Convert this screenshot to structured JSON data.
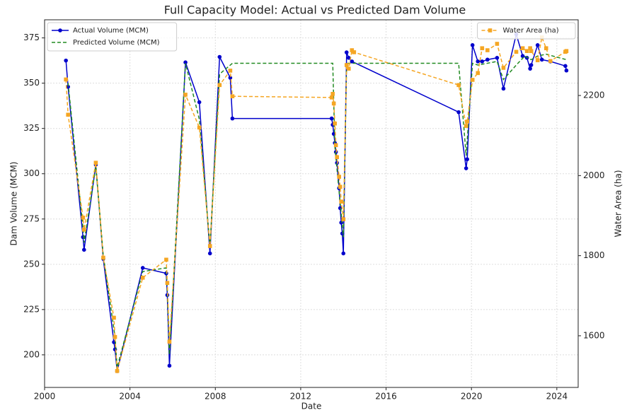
{
  "chart_data": {
    "type": "line",
    "title": "Full Capacity Model: Actual vs Predicted Dam Volume",
    "x_label": "Date",
    "y_label": "Dam Volume (MCM)",
    "y2_label": "Water Area (ha)",
    "xlim": [
      2000,
      2025
    ],
    "xticks": [
      2000,
      2004,
      2008,
      2012,
      2016,
      2020,
      2024
    ],
    "ylim": [
      182,
      385
    ],
    "yticks": [
      200,
      225,
      250,
      275,
      300,
      325,
      350,
      375
    ],
    "y2lim": [
      1471,
      2389
    ],
    "y2ticks": [
      1600,
      1800,
      2000,
      2200
    ],
    "grid": true,
    "legend": "upper left",
    "legend2": "upper right",
    "series": [
      {
        "name": "Actual Volume (MCM)",
        "color": "#0000cc",
        "marker": "circle",
        "linestyle": "solid",
        "x": [
          2001.0,
          2001.1,
          2001.8,
          2001.85,
          2002.4,
          2002.75,
          2003.25,
          2003.3,
          2003.4,
          2004.6,
          2005.7,
          2005.75,
          2005.85,
          2006.6,
          2007.25,
          2007.75,
          2008.2,
          2008.7,
          2008.8,
          2013.45,
          2013.5,
          2013.55,
          2013.6,
          2013.65,
          2013.7,
          2013.8,
          2013.85,
          2013.9,
          2013.95,
          2014.0,
          2014.15,
          2014.25,
          2014.4,
          2019.4,
          2019.75,
          2019.8,
          2020.05,
          2020.3,
          2020.5,
          2020.75,
          2021.2,
          2021.5,
          2022.1,
          2022.4,
          2022.6,
          2022.75,
          2022.8,
          2023.1,
          2023.3,
          2023.7,
          2024.4,
          2024.45
        ],
        "values": [
          362.5,
          348,
          265,
          258,
          305,
          253,
          207,
          203,
          191,
          248,
          245,
          233,
          194,
          361.5,
          339.5,
          256,
          364.5,
          353,
          330.5,
          330.5,
          327,
          322,
          317,
          312,
          306,
          292,
          281,
          273,
          267,
          256,
          367,
          364,
          362,
          334,
          303,
          308,
          371,
          362,
          362,
          363,
          364,
          347,
          377,
          365,
          364,
          358,
          360,
          371,
          363,
          362,
          359.5,
          357
        ]
      },
      {
        "name": "Predicted Volume (MCM)",
        "color": "#228b22",
        "marker": "none",
        "linestyle": "dashed",
        "x": [
          2001.0,
          2001.1,
          2001.8,
          2001.85,
          2002.4,
          2002.75,
          2003.3,
          2003.4,
          2004.6,
          2005.7,
          2005.75,
          2005.85,
          2006.6,
          2007.25,
          2007.75,
          2008.2,
          2008.8,
          2013.5,
          2013.6,
          2013.8,
          2014.0,
          2014.15,
          2019.4,
          2019.75,
          2020.05,
          2020.3,
          2021.2,
          2021.5,
          2022.1,
          2022.5,
          2022.8,
          2023.1,
          2023.5,
          2024.45
        ],
        "values": [
          353,
          350,
          270,
          262,
          304,
          255,
          210,
          193,
          246,
          248,
          236,
          200,
          361,
          330,
          260,
          355,
          361,
          361,
          315,
          290,
          265,
          361,
          361,
          310,
          361,
          360,
          362,
          352,
          360,
          365,
          363,
          365,
          366,
          363
        ]
      },
      {
        "name": "Water Area (ha)",
        "color": "#f5a623",
        "marker": "square",
        "linestyle": "dashed",
        "axis": "y2",
        "x": [
          2001.0,
          2001.1,
          2001.8,
          2001.85,
          2002.4,
          2002.75,
          2003.25,
          2003.3,
          2003.4,
          2004.6,
          2005.7,
          2005.75,
          2005.85,
          2006.6,
          2007.25,
          2007.75,
          2008.2,
          2008.7,
          2008.8,
          2013.45,
          2013.5,
          2013.55,
          2013.6,
          2013.65,
          2013.7,
          2013.8,
          2013.85,
          2013.9,
          2014.0,
          2014.15,
          2014.25,
          2014.4,
          2014.5,
          2019.4,
          2019.75,
          2019.8,
          2020.05,
          2020.3,
          2020.5,
          2020.75,
          2021.2,
          2021.5,
          2022.1,
          2022.4,
          2022.6,
          2022.75,
          2022.8,
          2023.1,
          2023.3,
          2023.5,
          2023.7,
          2024.4,
          2024.45
        ],
        "values": [
          2240,
          2152,
          1895,
          1865,
          2032,
          1795,
          1645,
          1597,
          1512,
          1745,
          1790,
          1732,
          1585,
          2202,
          2120,
          1824,
          2226,
          2262,
          2198,
          2195,
          2204,
          2180,
          2130,
          2076,
          2046,
          1997,
          1972,
          1935,
          1891,
          2276,
          2267,
          2313,
          2308,
          2226,
          2124,
          2135,
          2239,
          2256,
          2318,
          2313,
          2329,
          2269,
          2309,
          2318,
          2311,
          2318,
          2311,
          2288,
          2345,
          2318,
          2286,
          2309,
          2311
        ]
      }
    ]
  }
}
